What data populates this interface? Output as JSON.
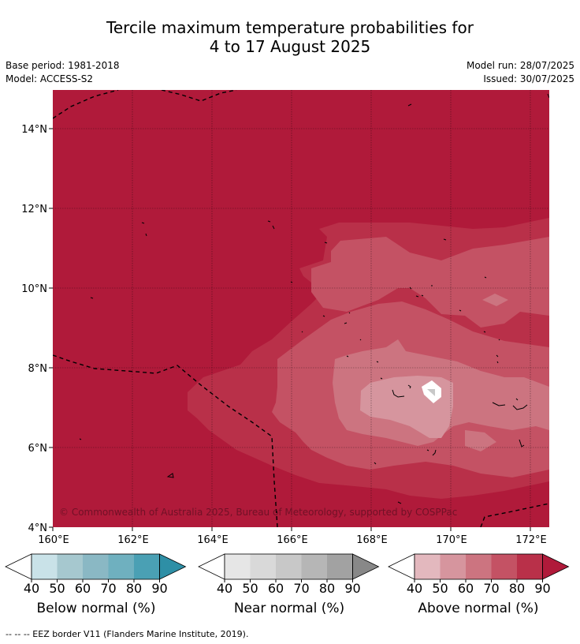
{
  "title_line1": "Tercile maximum temperature probabilities for",
  "title_line2": "4 to 17 August 2025",
  "base_period": "Base period: 1981-2018",
  "model": "Model: ACCESS-S2",
  "model_run": "Model run: 28/07/2025",
  "issued": "Issued: 30/07/2025",
  "map": {
    "lat_labels": [
      "14°N",
      "12°N",
      "10°N",
      "8°N",
      "6°N",
      "4°N"
    ],
    "lon_labels": [
      "160°E",
      "162°E",
      "164°E",
      "166°E",
      "168°E",
      "170°E",
      "172°E"
    ],
    "copyright": "© Commonwealth of Australia 2025, Bureau of Meteorology, supported by COSPPac",
    "extent": {
      "lon_min": 160,
      "lon_max": 172.5,
      "lat_min": 4,
      "lat_max": 15
    }
  },
  "colorbars": [
    {
      "title": "Below normal (%)",
      "ticks": [
        "40",
        "50",
        "60",
        "70",
        "80",
        "90"
      ],
      "colors": [
        "#ffffff",
        "#c9e2e8",
        "#a6c8cf",
        "#8ab8c4",
        "#6fb0bf",
        "#4aa0b4",
        "#2e8fa6"
      ]
    },
    {
      "title": "Near normal (%)",
      "ticks": [
        "40",
        "50",
        "60",
        "70",
        "80",
        "90"
      ],
      "colors": [
        "#ffffff",
        "#e6e6e6",
        "#d9d9d9",
        "#c8c8c8",
        "#b6b6b6",
        "#a2a2a2",
        "#888888"
      ]
    },
    {
      "title": "Above normal (%)",
      "ticks": [
        "40",
        "50",
        "60",
        "70",
        "80",
        "90"
      ],
      "colors": [
        "#ffffff",
        "#e3b8be",
        "#d6959e",
        "#cc7480",
        "#c45264",
        "#b93049",
        "#b01a3a"
      ]
    }
  ],
  "footer": "-- -- -- EEZ border V11 (Flanders Marine Institute, 2019)."
}
